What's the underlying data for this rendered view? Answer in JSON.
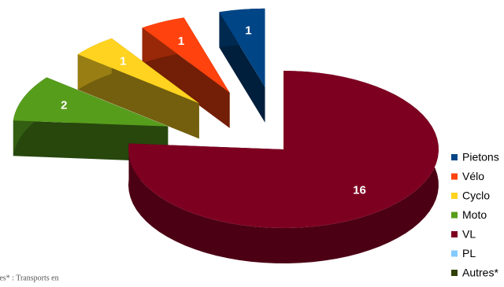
{
  "chart_data": {
    "type": "pie3d",
    "categories": [
      "Pietons",
      "Vélo",
      "Cyclo",
      "Moto",
      "VL",
      "PL",
      "Autres*"
    ],
    "values": [
      1,
      1,
      1,
      2,
      16,
      0,
      0
    ],
    "colors": [
      "#004586",
      "#ff420e",
      "#ffd320",
      "#579d1c",
      "#7e0021",
      "#83caff",
      "#314004"
    ],
    "legend": "right",
    "note": "res* : Transports en"
  }
}
